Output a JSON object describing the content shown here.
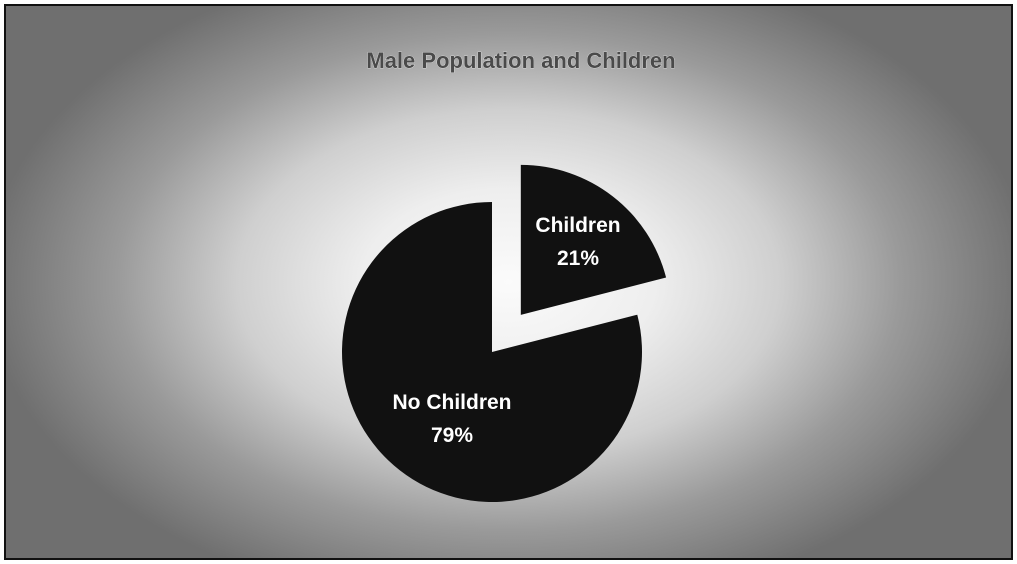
{
  "chart_data": {
    "type": "pie",
    "title": "Male Population and Children",
    "slices": [
      {
        "label": "Children",
        "value": 21,
        "value_label": "21%",
        "exploded": true
      },
      {
        "label": "No Children",
        "value": 79,
        "value_label": "79%",
        "exploded": false
      }
    ],
    "legend": "none",
    "colors": {
      "slice_fill": "#111111",
      "title_text": "#4a4a4a",
      "label_text": "#ffffff"
    }
  }
}
